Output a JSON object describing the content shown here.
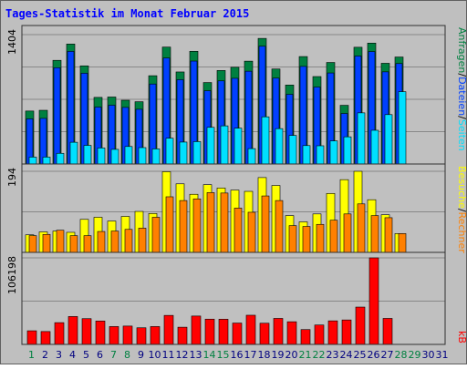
{
  "title": "Tages-Statistik im Monat Februar 2015",
  "colors": {
    "frame": "#bfbfbf",
    "background": "#c0c0c0",
    "title": "#0000ff",
    "grid": "#888888",
    "hits": "#008040",
    "files": "#0040ff",
    "pages": "#00e0ff",
    "visits": "#ffff00",
    "sites": "#ff8000",
    "kbytes": "#ff0000",
    "weekday_label": "#000080",
    "weekend_label": "#008040"
  },
  "legend": {
    "top": {
      "hits": "Anfragen",
      "files": "Dateien",
      "pages": "Seiten",
      "sep": "/"
    },
    "middle": {
      "visits": "Besuche",
      "sites": "Rechner",
      "sep": "/"
    },
    "bottom": {
      "kbytes": "kB"
    }
  },
  "chart_data": {
    "type": "bar",
    "categories": [
      "1",
      "2",
      "3",
      "4",
      "5",
      "6",
      "7",
      "8",
      "9",
      "10",
      "11",
      "12",
      "13",
      "14",
      "15",
      "16",
      "17",
      "18",
      "19",
      "20",
      "21",
      "22",
      "23",
      "24",
      "25",
      "26",
      "27",
      "28",
      "29",
      "30",
      "31"
    ],
    "weekend_days": [
      1,
      7,
      8,
      14,
      15,
      21,
      22,
      28,
      29
    ],
    "panels": [
      {
        "ymax_label": "1404",
        "ylim": [
          0,
          1404
        ],
        "series": [
          {
            "name": "Anfragen",
            "values": [
              575,
              583,
              1125,
              1302,
              1065,
              723,
              727,
              692,
              676,
              958,
              1269,
              999,
              1223,
              884,
              1015,
              1050,
              1116,
              1363,
              1031,
              857,
              1166,
              949,
              1102,
              637,
              1267,
              1312,
              1093,
              1161,
              0,
              0,
              0
            ]
          },
          {
            "name": "Dateien",
            "values": [
              490,
              495,
              1045,
              1222,
              985,
              618,
              638,
              614,
              594,
              868,
              1150,
              915,
              1117,
              795,
              902,
              930,
              1007,
              1278,
              932,
              756,
              1059,
              835,
              988,
              548,
              1172,
              1220,
              1000,
              1090,
              0,
              0,
              0
            ]
          },
          {
            "name": "Seiten",
            "values": [
              75,
              75,
              116,
              236,
              202,
              174,
              159,
              190,
              178,
              164,
              280,
              238,
              243,
              398,
              414,
              389,
              167,
              512,
              384,
              310,
              200,
              198,
              251,
              295,
              555,
              366,
              536,
              785,
              0,
              0,
              0
            ]
          }
        ]
      },
      {
        "ymax_label": "194",
        "ylim": [
          0,
          194
        ],
        "series": [
          {
            "name": "Besuche",
            "values": [
              42,
              49,
              51,
              48,
              79,
              84,
              75,
              86,
              98,
              93,
              193,
              164,
              139,
              162,
              154,
              149,
              146,
              179,
              160,
              88,
              73,
              92,
              141,
              174,
              194,
              126,
              90,
              45,
              0,
              0,
              0
            ]
          },
          {
            "name": "Rechner",
            "values": [
              40,
              43,
              53,
              40,
              40,
              50,
              51,
              55,
              58,
              84,
              133,
              124,
              128,
              143,
              142,
              106,
              96,
              135,
              124,
              64,
              62,
              67,
              77,
              92,
              116,
              88,
              83,
              45,
              0,
              0,
              0
            ]
          }
        ]
      },
      {
        "ymax_label": "106198",
        "ylim": [
          0,
          106198
        ],
        "series": [
          {
            "name": "kB",
            "values": [
              16700,
              15800,
              26700,
              34200,
              31600,
              28700,
              21900,
              22500,
              20400,
              21900,
              35600,
              21100,
              34800,
              31000,
              30900,
              26200,
              35800,
              26000,
              31900,
              27800,
              18200,
              23800,
              28900,
              30000,
              45800,
              106198,
              31900,
              0,
              0,
              0,
              0
            ]
          }
        ]
      }
    ]
  }
}
